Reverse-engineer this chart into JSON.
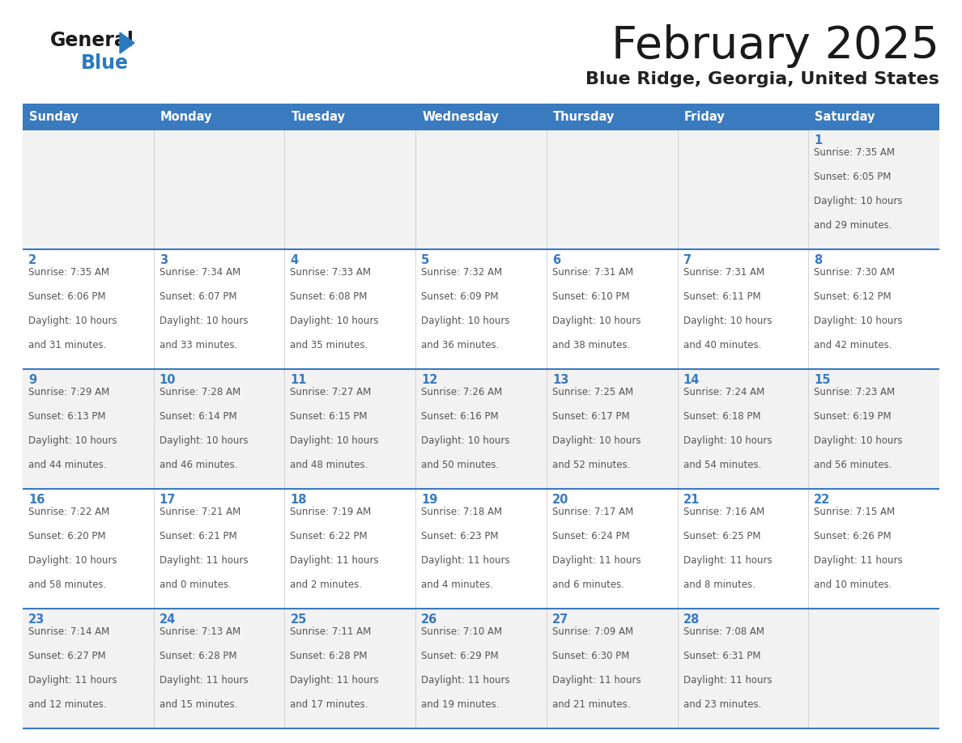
{
  "title": "February 2025",
  "subtitle": "Blue Ridge, Georgia, United States",
  "days_of_week": [
    "Sunday",
    "Monday",
    "Tuesday",
    "Wednesday",
    "Thursday",
    "Friday",
    "Saturday"
  ],
  "header_bg_color": "#3a7abf",
  "header_text_color": "#ffffff",
  "row_odd_bg": "#f2f2f2",
  "row_even_bg": "#ffffff",
  "cell_border_color": "#3a7abf",
  "day_number_color": "#3a7abf",
  "info_text_color": "#555555",
  "title_color": "#1a1a1a",
  "subtitle_color": "#222222",
  "logo_general_color": "#1a1a1a",
  "logo_blue_color": "#2b7abf",
  "calendar_data": [
    [
      {
        "day": null,
        "sunrise": null,
        "sunset": null,
        "daylight": null
      },
      {
        "day": null,
        "sunrise": null,
        "sunset": null,
        "daylight": null
      },
      {
        "day": null,
        "sunrise": null,
        "sunset": null,
        "daylight": null
      },
      {
        "day": null,
        "sunrise": null,
        "sunset": null,
        "daylight": null
      },
      {
        "day": null,
        "sunrise": null,
        "sunset": null,
        "daylight": null
      },
      {
        "day": null,
        "sunrise": null,
        "sunset": null,
        "daylight": null
      },
      {
        "day": 1,
        "sunrise": "7:35 AM",
        "sunset": "6:05 PM",
        "daylight": "10 hours and 29 minutes."
      }
    ],
    [
      {
        "day": 2,
        "sunrise": "7:35 AM",
        "sunset": "6:06 PM",
        "daylight": "10 hours and 31 minutes."
      },
      {
        "day": 3,
        "sunrise": "7:34 AM",
        "sunset": "6:07 PM",
        "daylight": "10 hours and 33 minutes."
      },
      {
        "day": 4,
        "sunrise": "7:33 AM",
        "sunset": "6:08 PM",
        "daylight": "10 hours and 35 minutes."
      },
      {
        "day": 5,
        "sunrise": "7:32 AM",
        "sunset": "6:09 PM",
        "daylight": "10 hours and 36 minutes."
      },
      {
        "day": 6,
        "sunrise": "7:31 AM",
        "sunset": "6:10 PM",
        "daylight": "10 hours and 38 minutes."
      },
      {
        "day": 7,
        "sunrise": "7:31 AM",
        "sunset": "6:11 PM",
        "daylight": "10 hours and 40 minutes."
      },
      {
        "day": 8,
        "sunrise": "7:30 AM",
        "sunset": "6:12 PM",
        "daylight": "10 hours and 42 minutes."
      }
    ],
    [
      {
        "day": 9,
        "sunrise": "7:29 AM",
        "sunset": "6:13 PM",
        "daylight": "10 hours and 44 minutes."
      },
      {
        "day": 10,
        "sunrise": "7:28 AM",
        "sunset": "6:14 PM",
        "daylight": "10 hours and 46 minutes."
      },
      {
        "day": 11,
        "sunrise": "7:27 AM",
        "sunset": "6:15 PM",
        "daylight": "10 hours and 48 minutes."
      },
      {
        "day": 12,
        "sunrise": "7:26 AM",
        "sunset": "6:16 PM",
        "daylight": "10 hours and 50 minutes."
      },
      {
        "day": 13,
        "sunrise": "7:25 AM",
        "sunset": "6:17 PM",
        "daylight": "10 hours and 52 minutes."
      },
      {
        "day": 14,
        "sunrise": "7:24 AM",
        "sunset": "6:18 PM",
        "daylight": "10 hours and 54 minutes."
      },
      {
        "day": 15,
        "sunrise": "7:23 AM",
        "sunset": "6:19 PM",
        "daylight": "10 hours and 56 minutes."
      }
    ],
    [
      {
        "day": 16,
        "sunrise": "7:22 AM",
        "sunset": "6:20 PM",
        "daylight": "10 hours and 58 minutes."
      },
      {
        "day": 17,
        "sunrise": "7:21 AM",
        "sunset": "6:21 PM",
        "daylight": "11 hours and 0 minutes."
      },
      {
        "day": 18,
        "sunrise": "7:19 AM",
        "sunset": "6:22 PM",
        "daylight": "11 hours and 2 minutes."
      },
      {
        "day": 19,
        "sunrise": "7:18 AM",
        "sunset": "6:23 PM",
        "daylight": "11 hours and 4 minutes."
      },
      {
        "day": 20,
        "sunrise": "7:17 AM",
        "sunset": "6:24 PM",
        "daylight": "11 hours and 6 minutes."
      },
      {
        "day": 21,
        "sunrise": "7:16 AM",
        "sunset": "6:25 PM",
        "daylight": "11 hours and 8 minutes."
      },
      {
        "day": 22,
        "sunrise": "7:15 AM",
        "sunset": "6:26 PM",
        "daylight": "11 hours and 10 minutes."
      }
    ],
    [
      {
        "day": 23,
        "sunrise": "7:14 AM",
        "sunset": "6:27 PM",
        "daylight": "11 hours and 12 minutes."
      },
      {
        "day": 24,
        "sunrise": "7:13 AM",
        "sunset": "6:28 PM",
        "daylight": "11 hours and 15 minutes."
      },
      {
        "day": 25,
        "sunrise": "7:11 AM",
        "sunset": "6:28 PM",
        "daylight": "11 hours and 17 minutes."
      },
      {
        "day": 26,
        "sunrise": "7:10 AM",
        "sunset": "6:29 PM",
        "daylight": "11 hours and 19 minutes."
      },
      {
        "day": 27,
        "sunrise": "7:09 AM",
        "sunset": "6:30 PM",
        "daylight": "11 hours and 21 minutes."
      },
      {
        "day": 28,
        "sunrise": "7:08 AM",
        "sunset": "6:31 PM",
        "daylight": "11 hours and 23 minutes."
      },
      {
        "day": null,
        "sunrise": null,
        "sunset": null,
        "daylight": null
      }
    ]
  ]
}
